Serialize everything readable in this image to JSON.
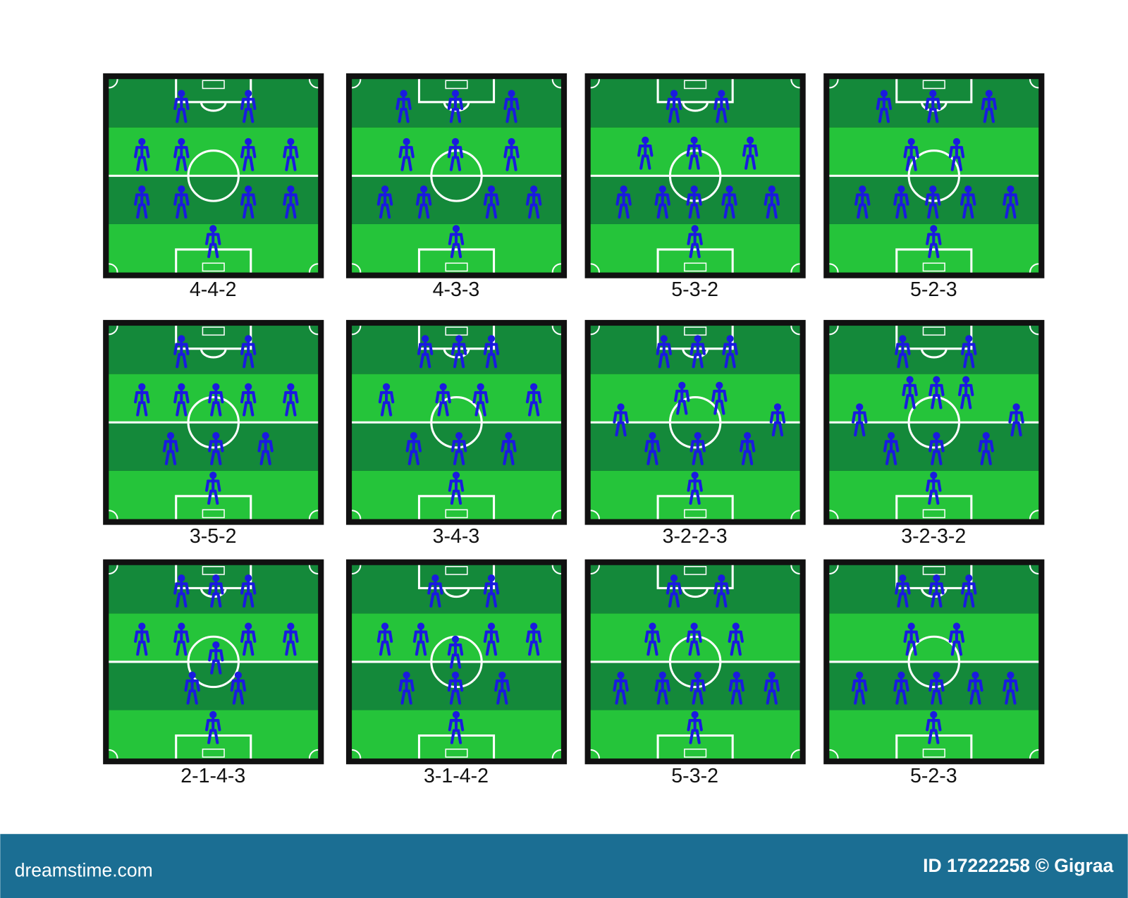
{
  "formations": [
    "4-4-2",
    "4-3-3",
    "5-3-2",
    "5-2-3",
    "3-5-2",
    "3-4-3",
    "3-2-2-3",
    "3-2-3-2",
    "2-1-4-3",
    "3-1-4-2",
    "5-3-2",
    "5-2-3"
  ],
  "footer": {
    "site": "dreamstime.com",
    "credit": "ID 17222258 © Gigraa"
  }
}
